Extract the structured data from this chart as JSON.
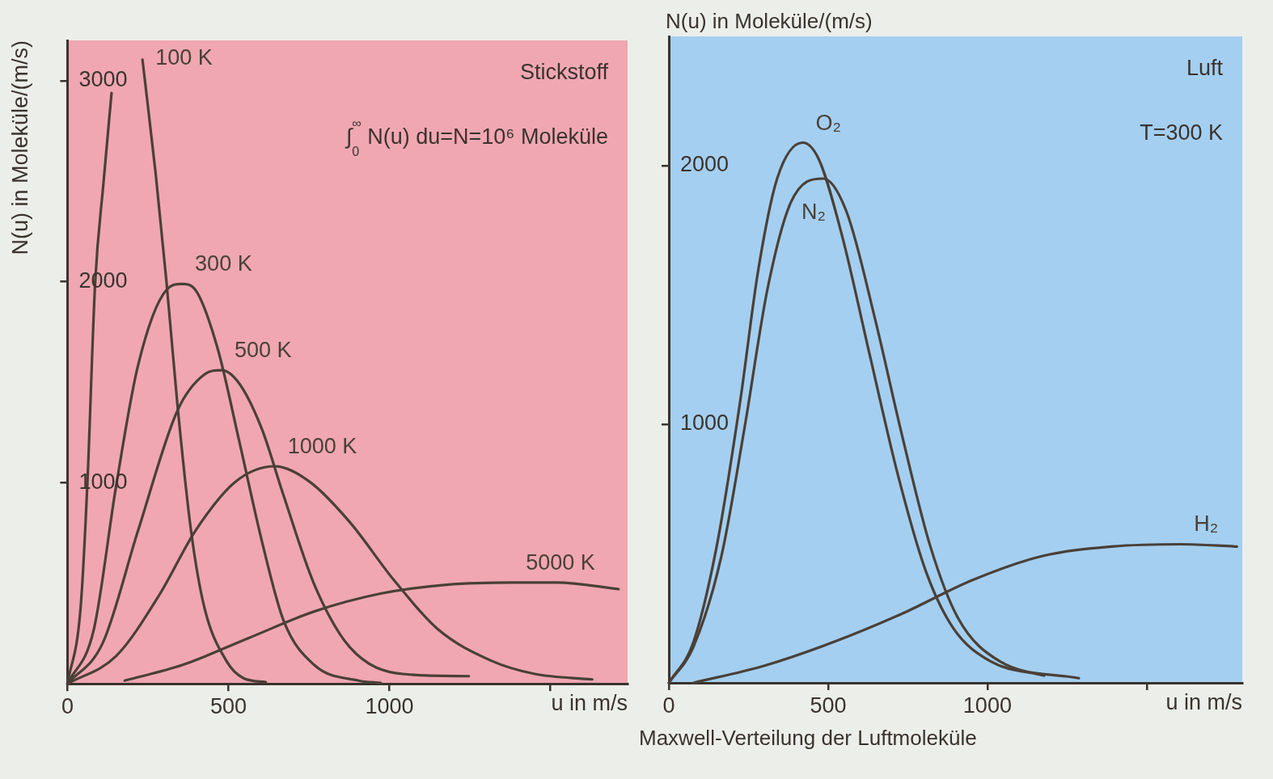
{
  "chart_data": [
    {
      "type": "line",
      "xlabel": "u in m/s",
      "ylabel": "N(u) in Moleküle/(m/s)",
      "xlim": [
        0,
        1740
      ],
      "ylim": [
        0,
        3200
      ],
      "xticks": [
        0,
        500,
        1000,
        {
          "value": 1500,
          "label": null
        }
      ],
      "yticks": [
        1000,
        2000,
        3000
      ],
      "marker": "none",
      "line_style": "solid",
      "annotations": [
        "Stickstoff",
        "∫$_{0}$$^{∞}$ N(u) du=N=10⁶ Moleküle"
      ],
      "series": [
        {
          "name": "100 K",
          "color": "#4a4038",
          "x": [
            0,
            41,
            62,
            86,
            112,
            137,
            185,
            233,
            274,
            308,
            342,
            384,
            425,
            493,
            548,
            616
          ],
          "values": [
            0,
            382,
            1000,
            1993,
            2493,
            2938,
            null,
            3104,
            2538,
            1993,
            1382,
            760,
            382,
            116,
            27,
            9
          ]
        },
        {
          "name": "300 K",
          "color": "#4a4038",
          "x": [
            0,
            82,
            151,
            219,
            308,
            356,
            397,
            466,
            534,
            603,
            671,
            767,
            904,
            973
          ],
          "values": [
            0,
            271,
            982,
            1582,
            1960,
            1989,
            1960,
            1671,
            1204,
            716,
            316,
            93,
            16,
            4
          ]
        },
        {
          "name": "500 K",
          "color": "#4a4038",
          "x": [
            0,
            110,
            219,
            342,
            425,
            479,
            534,
            603,
            671,
            767,
            877,
            1041,
            1247
          ],
          "values": [
            0,
            204,
            760,
            1360,
            1538,
            1560,
            1493,
            1271,
            938,
            493,
            182,
            49,
            38
          ]
        },
        {
          "name": "1000 K",
          "color": "#4a4038",
          "x": [
            0,
            151,
            288,
            397,
            521,
            644,
            753,
            877,
            1014,
            1151,
            1315,
            1452,
            1630
          ],
          "values": [
            0,
            138,
            449,
            760,
            1004,
            1082,
            1004,
            804,
            516,
            271,
            116,
            49,
            22
          ]
        },
        {
          "name": "5000 K",
          "color": "#4a4038",
          "x": [
            178,
            356,
            562,
            767,
            973,
            1178,
            1384,
            1521,
            1712
          ],
          "values": [
            16,
            93,
            227,
            360,
            449,
            493,
            504,
            504,
            471
          ]
        }
      ]
    },
    {
      "type": "line",
      "title": "Maxwell-Verteilung der Luftmoleküle",
      "xlabel": "u in m/s",
      "ylabel": "N(u) in Moleküle/(m/s)",
      "xlim": [
        0,
        1800
      ],
      "ylim": [
        0,
        2500
      ],
      "xticks": [
        0,
        500,
        1000,
        {
          "value": 1500,
          "label": null
        }
      ],
      "yticks": [
        1000,
        2000
      ],
      "marker": "none",
      "line_style": "solid",
      "annotations": [
        "Luft",
        "T=300 K"
      ],
      "series": [
        {
          "name": "O₂",
          "color": "#4a4038",
          "x": [
            0,
            77,
            150,
            223,
            281,
            340,
            420,
            471,
            544,
            631,
            719,
            806,
            892,
            1010,
            1178
          ],
          "values": [
            0,
            157,
            527,
            1081,
            1599,
            1950,
            2089,
            2024,
            1728,
            1266,
            804,
            434,
            213,
            83,
            28
          ]
        },
        {
          "name": "N₂",
          "color": "#4a4038",
          "x": [
            0,
            77,
            165,
            238,
            310,
            383,
            485,
            558,
            646,
            733,
            821,
            908,
            1039,
            1287
          ],
          "values": [
            0,
            139,
            490,
            989,
            1525,
            1858,
            1950,
            1821,
            1414,
            952,
            527,
            250,
            83,
            18
          ]
        },
        {
          "name": "H₂",
          "color": "#4a4038",
          "x": [
            77,
            296,
            515,
            733,
            952,
            1171,
            1389,
            1608,
            1783
          ],
          "values": [
            0,
            65,
            157,
            268,
            397,
            490,
            527,
            536,
            527
          ]
        }
      ]
    }
  ]
}
